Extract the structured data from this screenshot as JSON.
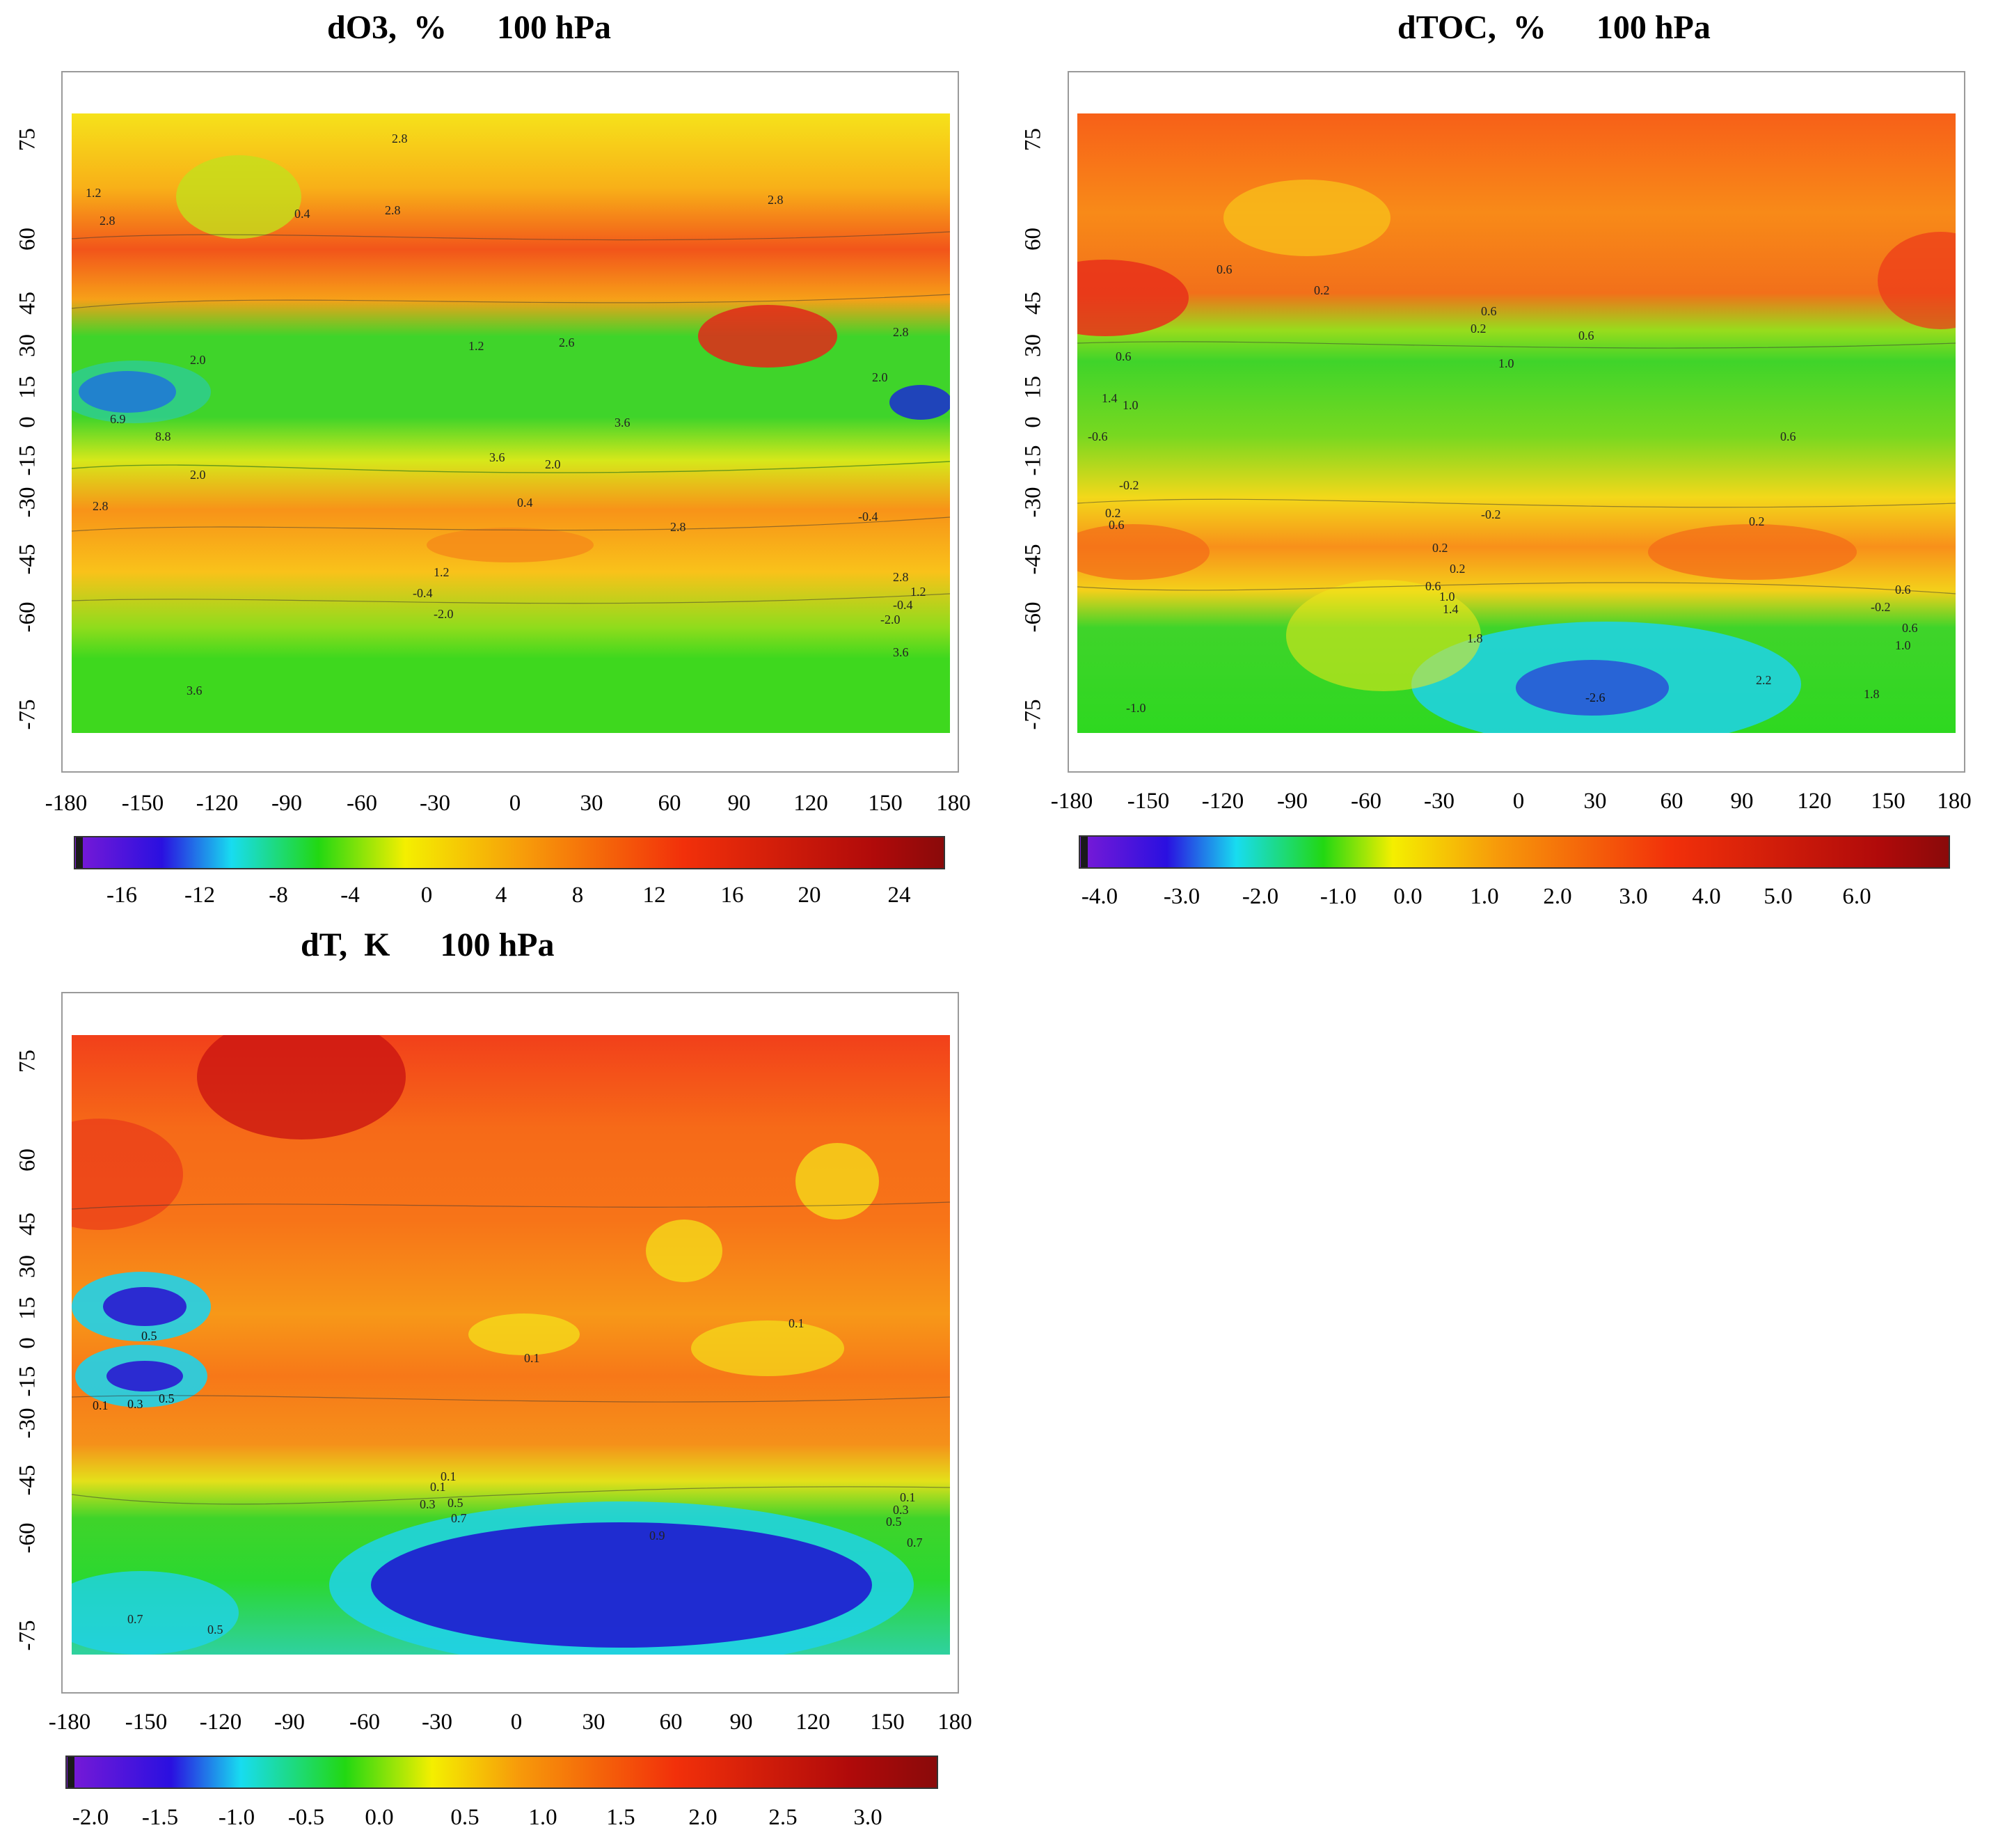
{
  "panels": [
    {
      "id": "do3",
      "title": "dO3,  %      100 hPa",
      "x_ticks": [
        "-180",
        "-150",
        "-120",
        "-90",
        "-60",
        "-30",
        "0",
        "30",
        "60",
        "90",
        "120",
        "150",
        "180"
      ],
      "y_ticks": [
        "75",
        "60",
        "45",
        "30",
        "15",
        "0",
        "-15",
        "-30",
        "-45",
        "-60",
        "-75"
      ],
      "colorbar_labels": [
        "-16",
        "-12",
        "-8",
        "-4",
        "0",
        "4",
        "8",
        "12",
        "16",
        "20",
        "24"
      ],
      "contour_labels": [
        "2.8",
        "1.2",
        "2.8",
        "0.4",
        "2.8",
        "2.8",
        "2.0",
        "1.2",
        "2.6",
        "2.0",
        "3.6",
        "8.8",
        "6.9",
        "2.8",
        "0.4",
        "3.6",
        "2.0",
        "2.8",
        "1.2",
        "-0.4",
        "-2.0",
        "2.8",
        "1.2",
        "-0.4",
        "-2.0",
        "3.6",
        "3.6",
        "-0.4",
        "2.8",
        "2.0"
      ]
    },
    {
      "id": "dtoc",
      "title": "dTOC,  %      100 hPa",
      "x_ticks": [
        "-180",
        "-150",
        "-120",
        "-90",
        "-60",
        "-30",
        "0",
        "30",
        "60",
        "90",
        "120",
        "150",
        "180"
      ],
      "y_ticks": [
        "75",
        "60",
        "45",
        "30",
        "15",
        "0",
        "-15",
        "-30",
        "-45",
        "-60",
        "-75"
      ],
      "colorbar_labels": [
        "-4.0",
        "-3.0",
        "-2.0",
        "-1.0",
        "0.0",
        "1.0",
        "2.0",
        "3.0",
        "4.0",
        "5.0",
        "6.0"
      ],
      "contour_labels": [
        "0.6",
        "0.2",
        "0.6",
        "0.2",
        "0.6",
        "1.0",
        "0.6",
        "1.4",
        "1.0",
        "-0.6",
        "0.6",
        "-0.2",
        "0.2",
        "0.6",
        "-0.2",
        "0.2",
        "0.2",
        "0.2",
        "0.6",
        "1.0",
        "1.4",
        "1.8",
        "-2.6",
        "2.2",
        "1.8",
        "-1.0",
        "0.6",
        "-0.2",
        "0.6",
        "1.0"
      ]
    },
    {
      "id": "dt",
      "title": "dT,  K      100 hPa",
      "x_ticks": [
        "-180",
        "-150",
        "-120",
        "-90",
        "-60",
        "-30",
        "0",
        "30",
        "60",
        "90",
        "120",
        "150",
        "180"
      ],
      "y_ticks": [
        "75",
        "60",
        "45",
        "30",
        "15",
        "0",
        "-15",
        "-30",
        "-45",
        "-60",
        "-75"
      ],
      "colorbar_labels": [
        "-2.0",
        "-1.5",
        "-1.0",
        "-0.5",
        "0.0",
        "0.5",
        "1.0",
        "1.5",
        "2.0",
        "2.5",
        "3.0"
      ],
      "contour_labels": [
        "0.5",
        "0.1",
        "0.3",
        "0.5",
        "0.1",
        "0.1",
        "0.1",
        "0.1",
        "0.3",
        "0.5",
        "0.7",
        "0.9",
        "0.1",
        "0.3",
        "0.5",
        "0.7",
        "0.7",
        "0.5"
      ]
    }
  ],
  "colors": {
    "violet": "#6a0fd0",
    "blue": "#1f10d8",
    "cyan": "#16d8f0",
    "green": "#27d40a",
    "yellow": "#f4f000",
    "orange": "#f79a0a",
    "red": "#f0150a",
    "darkred": "#9c0a0a"
  }
}
